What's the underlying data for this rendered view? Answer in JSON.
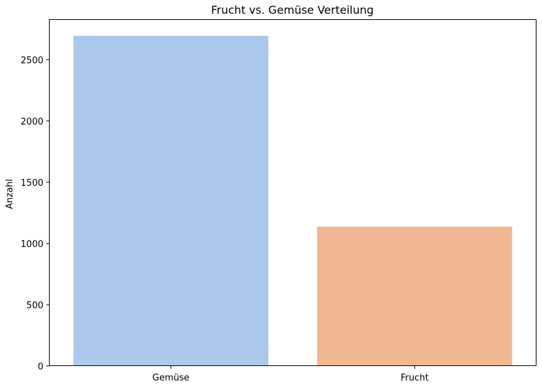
{
  "chart_data": {
    "type": "bar",
    "title": "Frucht vs. Gemüse Verteilung",
    "xlabel": "",
    "ylabel": "Anzahl",
    "categories": [
      "Gemüse",
      "Frucht"
    ],
    "values": [
      2695,
      1137
    ],
    "colors": [
      "#abc9ec",
      "#f0b792"
    ],
    "ylim": [
      0,
      2830
    ],
    "yticks": [
      0,
      500,
      1000,
      1500,
      2000,
      2500
    ],
    "grid": false,
    "legend": "none"
  }
}
